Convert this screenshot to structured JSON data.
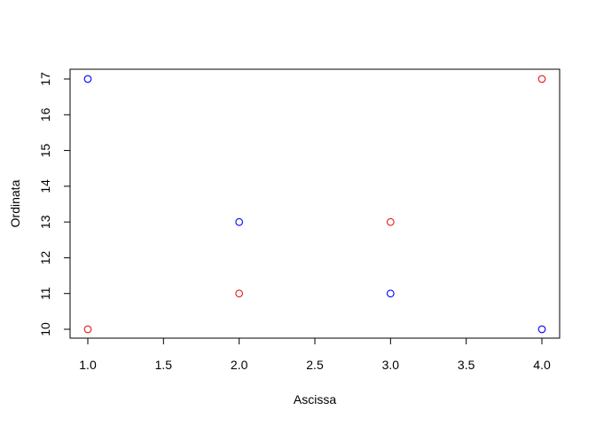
{
  "chart_data": {
    "type": "scatter",
    "title": "",
    "xlabel": "Ascissa",
    "ylabel": "Ordinata",
    "xlim": [
      1,
      4
    ],
    "ylim": [
      10,
      17
    ],
    "grid": false,
    "legend": "none",
    "x_ticks": [
      "1.0",
      "1.5",
      "2.0",
      "2.5",
      "3.0",
      "3.5",
      "4.0"
    ],
    "y_ticks": [
      "10",
      "11",
      "12",
      "13",
      "14",
      "15",
      "16",
      "17"
    ],
    "marker": "open-circle",
    "series": [
      {
        "color": "#e4181c",
        "x": [
          1,
          2,
          3,
          4
        ],
        "y": [
          10,
          11,
          13,
          17
        ]
      },
      {
        "color": "#0000ff",
        "x": [
          1,
          2,
          3,
          4
        ],
        "y": [
          17,
          13,
          11,
          10
        ]
      }
    ]
  }
}
